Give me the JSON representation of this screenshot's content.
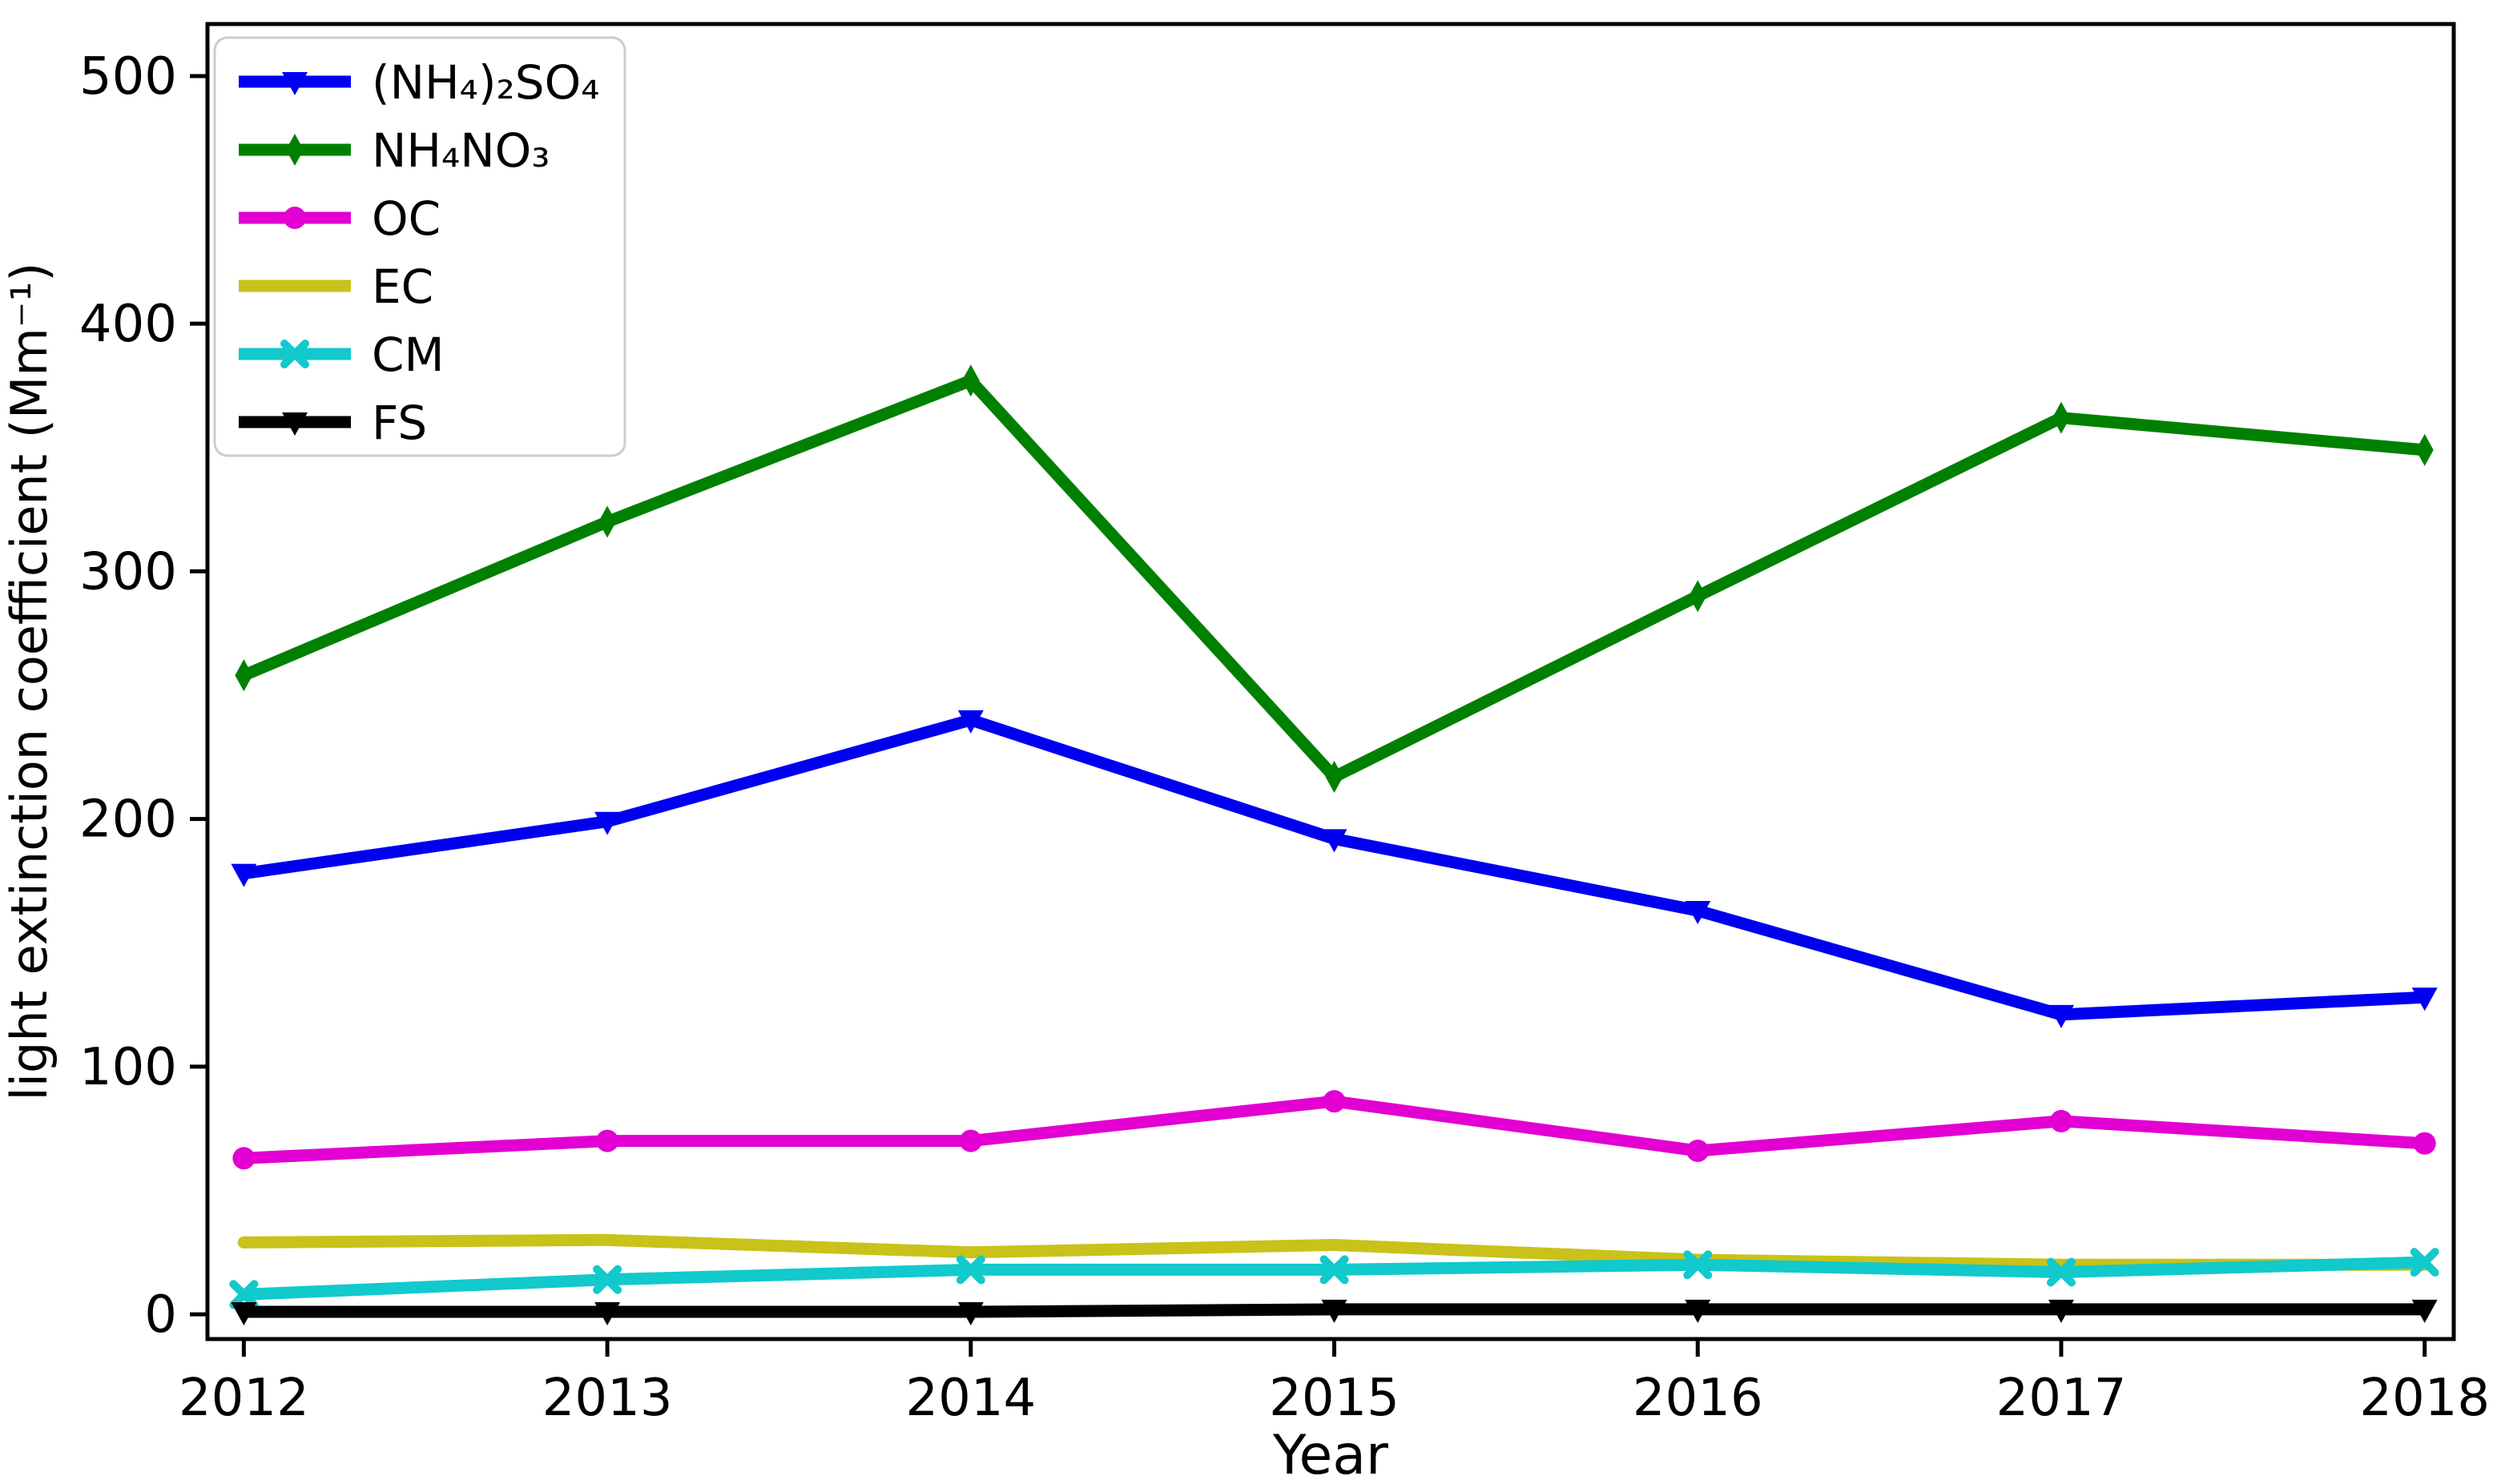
{
  "figure": {
    "background": "#ffffff",
    "spine_color": "#000000",
    "legend_border_color": "#cccccc",
    "legend_background": "#ffffff"
  },
  "chart_data": {
    "type": "line",
    "title": "",
    "xlabel": "Year",
    "ylabel": "light extinction coefficient (Mm⁻¹)",
    "x": [
      2012,
      2013,
      2014,
      2015,
      2016,
      2017,
      2018
    ],
    "xtick_labels": [
      "2012",
      "2013",
      "2014",
      "2015",
      "2016",
      "2017",
      "2018"
    ],
    "yticks": [
      0,
      100,
      200,
      300,
      400,
      500
    ],
    "ytick_labels": [
      "0",
      "100",
      "200",
      "300",
      "400",
      "500"
    ],
    "xlim": [
      2011.9,
      2018.08
    ],
    "ylim": [
      -10,
      521
    ],
    "grid": false,
    "legend_position": "upper-left",
    "series": [
      {
        "name": "(NH₄)₂SO₄",
        "color": "#0000f0",
        "marker": "triangle-down",
        "values": [
          178,
          199,
          240,
          192,
          163,
          121,
          128
        ]
      },
      {
        "name": "NH₄NO₃",
        "color": "#008000",
        "marker": "diamond-thin",
        "values": [
          258,
          320,
          377,
          217,
          290,
          362,
          349
        ]
      },
      {
        "name": "OC",
        "color": "#e200d2",
        "marker": "circle",
        "values": [
          63,
          70,
          70,
          86,
          66,
          78,
          69
        ]
      },
      {
        "name": "EC",
        "color": "#c8c21a",
        "marker": "none",
        "values": [
          29,
          30,
          25,
          28,
          22,
          20,
          20
        ]
      },
      {
        "name": "CM",
        "color": "#12c9cb",
        "marker": "x",
        "values": [
          8,
          14,
          18,
          18,
          20,
          17,
          21
        ]
      },
      {
        "name": "FS",
        "color": "#000000",
        "marker": "triangle-down",
        "values": [
          1,
          1,
          1,
          2,
          2,
          2,
          2
        ]
      }
    ]
  }
}
